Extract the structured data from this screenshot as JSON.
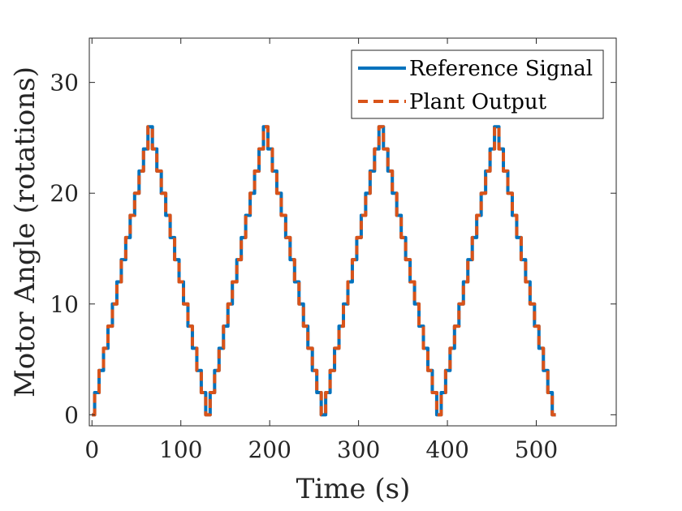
{
  "chart_data": {
    "type": "line",
    "xlabel": "Time (s)",
    "ylabel": "Motor Angle (rotations)",
    "xlim": [
      -3,
      590
    ],
    "ylim": [
      -1,
      34
    ],
    "xticks": [
      0,
      100,
      200,
      300,
      400,
      500
    ],
    "yticks": [
      0,
      10,
      20,
      30
    ],
    "grid": false,
    "legend_position": "top-right",
    "pattern": {
      "step_interval_s": 5,
      "step_height_rotations": 2,
      "peak_rotations": 26,
      "cycles": 4,
      "end_time_s": 522
    },
    "series": [
      {
        "name": "Reference Signal",
        "color": "#0072BD",
        "style": "solid",
        "x": [
          0,
          3,
          3,
          8,
          8,
          13,
          13,
          18,
          18,
          23,
          23,
          28,
          28,
          33,
          33,
          38,
          38,
          43,
          43,
          48,
          48,
          53,
          53,
          58,
          58,
          63,
          63,
          68,
          68,
          73,
          73,
          78,
          78,
          83,
          83,
          88,
          88,
          93,
          93,
          98,
          98,
          103,
          103,
          108,
          108,
          113,
          113,
          118,
          118,
          123,
          123,
          128,
          128,
          133,
          133,
          138,
          138,
          143,
          143,
          148,
          148,
          153,
          153,
          158,
          158,
          163,
          163,
          168,
          168,
          173,
          173,
          178,
          178,
          183,
          183,
          188,
          188,
          193,
          193,
          198,
          198,
          203,
          203,
          208,
          208,
          213,
          213,
          218,
          218,
          223,
          223,
          228,
          228,
          233,
          233,
          238,
          238,
          243,
          243,
          248,
          248,
          253,
          253,
          258,
          258,
          263,
          263,
          268,
          268,
          273,
          273,
          278,
          278,
          283,
          283,
          288,
          288,
          293,
          293,
          298,
          298,
          303,
          303,
          308,
          308,
          313,
          313,
          318,
          318,
          323,
          323,
          328,
          328,
          333,
          333,
          338,
          338,
          343,
          343,
          348,
          348,
          353,
          353,
          358,
          358,
          363,
          363,
          368,
          368,
          373,
          373,
          378,
          378,
          383,
          383,
          388,
          388,
          393,
          393,
          398,
          398,
          403,
          403,
          408,
          408,
          413,
          413,
          418,
          418,
          423,
          423,
          428,
          428,
          433,
          433,
          438,
          438,
          443,
          443,
          448,
          448,
          453,
          453,
          458,
          458,
          463,
          463,
          468,
          468,
          473,
          473,
          478,
          478,
          483,
          483,
          488,
          488,
          493,
          493,
          498,
          498,
          503,
          503,
          508,
          508,
          513,
          513,
          518,
          518,
          522
        ],
        "y": [
          0,
          0,
          2,
          2,
          4,
          4,
          6,
          6,
          8,
          8,
          10,
          10,
          12,
          12,
          14,
          14,
          16,
          16,
          18,
          18,
          20,
          20,
          22,
          22,
          24,
          24,
          26,
          26,
          24,
          24,
          22,
          22,
          20,
          20,
          18,
          18,
          16,
          16,
          14,
          14,
          12,
          12,
          10,
          10,
          8,
          8,
          6,
          6,
          4,
          4,
          2,
          2,
          0,
          0,
          2,
          2,
          4,
          4,
          6,
          6,
          8,
          8,
          10,
          10,
          12,
          12,
          14,
          14,
          16,
          16,
          18,
          18,
          20,
          20,
          22,
          22,
          24,
          24,
          26,
          26,
          24,
          24,
          22,
          22,
          20,
          20,
          18,
          18,
          16,
          16,
          14,
          14,
          12,
          12,
          10,
          10,
          8,
          8,
          6,
          6,
          4,
          4,
          2,
          2,
          0,
          0,
          2,
          2,
          4,
          4,
          6,
          6,
          8,
          8,
          10,
          10,
          12,
          12,
          14,
          14,
          16,
          16,
          18,
          18,
          20,
          20,
          22,
          22,
          24,
          24,
          26,
          26,
          24,
          24,
          22,
          22,
          20,
          20,
          18,
          18,
          16,
          16,
          14,
          14,
          12,
          12,
          10,
          10,
          8,
          8,
          6,
          6,
          4,
          4,
          2,
          2,
          0,
          0,
          2,
          2,
          4,
          4,
          6,
          6,
          8,
          8,
          10,
          10,
          12,
          12,
          14,
          14,
          16,
          16,
          18,
          18,
          20,
          20,
          22,
          22,
          24,
          24,
          26,
          26,
          24,
          24,
          22,
          22,
          20,
          20,
          18,
          18,
          16,
          16,
          14,
          14,
          12,
          12,
          10,
          10,
          8,
          8,
          6,
          6,
          4,
          4,
          2,
          2,
          0,
          0
        ]
      },
      {
        "name": "Plant Output",
        "color": "#D95319",
        "style": "dashed",
        "x": [
          0,
          3,
          3,
          8,
          8,
          13,
          13,
          18,
          18,
          23,
          23,
          28,
          28,
          33,
          33,
          38,
          38,
          43,
          43,
          48,
          48,
          53,
          53,
          58,
          58,
          63,
          63,
          68,
          68,
          73,
          73,
          78,
          78,
          83,
          83,
          88,
          88,
          93,
          93,
          98,
          98,
          103,
          103,
          108,
          108,
          113,
          113,
          118,
          118,
          123,
          123,
          128,
          128,
          133,
          133,
          138,
          138,
          143,
          143,
          148,
          148,
          153,
          153,
          158,
          158,
          163,
          163,
          168,
          168,
          173,
          173,
          178,
          178,
          183,
          183,
          188,
          188,
          193,
          193,
          198,
          198,
          203,
          203,
          208,
          208,
          213,
          213,
          218,
          218,
          223,
          223,
          228,
          228,
          233,
          233,
          238,
          238,
          243,
          243,
          248,
          248,
          253,
          253,
          258,
          258,
          263,
          263,
          268,
          268,
          273,
          273,
          278,
          278,
          283,
          283,
          288,
          288,
          293,
          293,
          298,
          298,
          303,
          303,
          308,
          308,
          313,
          313,
          318,
          318,
          323,
          323,
          328,
          328,
          333,
          333,
          338,
          338,
          343,
          343,
          348,
          348,
          353,
          353,
          358,
          358,
          363,
          363,
          368,
          368,
          373,
          373,
          378,
          378,
          383,
          383,
          388,
          388,
          393,
          393,
          398,
          398,
          403,
          403,
          408,
          408,
          413,
          413,
          418,
          418,
          423,
          423,
          428,
          428,
          433,
          433,
          438,
          438,
          443,
          443,
          448,
          448,
          453,
          453,
          458,
          458,
          463,
          463,
          468,
          468,
          473,
          473,
          478,
          478,
          483,
          483,
          488,
          488,
          493,
          493,
          498,
          498,
          503,
          503,
          508,
          508,
          513,
          513,
          518,
          518,
          522
        ],
        "y": [
          0,
          0,
          2,
          2,
          4,
          4,
          6,
          6,
          8,
          8,
          10,
          10,
          12,
          12,
          14,
          14,
          16,
          16,
          18,
          18,
          20,
          20,
          22,
          22,
          24,
          24,
          26,
          26,
          24,
          24,
          22,
          22,
          20,
          20,
          18,
          18,
          16,
          16,
          14,
          14,
          12,
          12,
          10,
          10,
          8,
          8,
          6,
          6,
          4,
          4,
          2,
          2,
          0,
          0,
          2,
          2,
          4,
          4,
          6,
          6,
          8,
          8,
          10,
          10,
          12,
          12,
          14,
          14,
          16,
          16,
          18,
          18,
          20,
          20,
          22,
          22,
          24,
          24,
          26,
          26,
          24,
          24,
          22,
          22,
          20,
          20,
          18,
          18,
          16,
          16,
          14,
          14,
          12,
          12,
          10,
          10,
          8,
          8,
          6,
          6,
          4,
          4,
          2,
          2,
          0,
          0,
          2,
          2,
          4,
          4,
          6,
          6,
          8,
          8,
          10,
          10,
          12,
          12,
          14,
          14,
          16,
          16,
          18,
          18,
          20,
          20,
          22,
          22,
          24,
          24,
          26,
          26,
          24,
          24,
          22,
          22,
          20,
          20,
          18,
          18,
          16,
          16,
          14,
          14,
          12,
          12,
          10,
          10,
          8,
          8,
          6,
          6,
          4,
          4,
          2,
          2,
          0,
          0,
          2,
          2,
          4,
          4,
          6,
          6,
          8,
          8,
          10,
          10,
          12,
          12,
          14,
          14,
          16,
          16,
          18,
          18,
          20,
          20,
          22,
          22,
          24,
          24,
          26,
          26,
          24,
          24,
          22,
          22,
          20,
          20,
          18,
          18,
          16,
          16,
          14,
          14,
          12,
          12,
          10,
          10,
          8,
          8,
          6,
          6,
          4,
          4,
          2,
          2,
          0,
          0
        ]
      }
    ]
  }
}
